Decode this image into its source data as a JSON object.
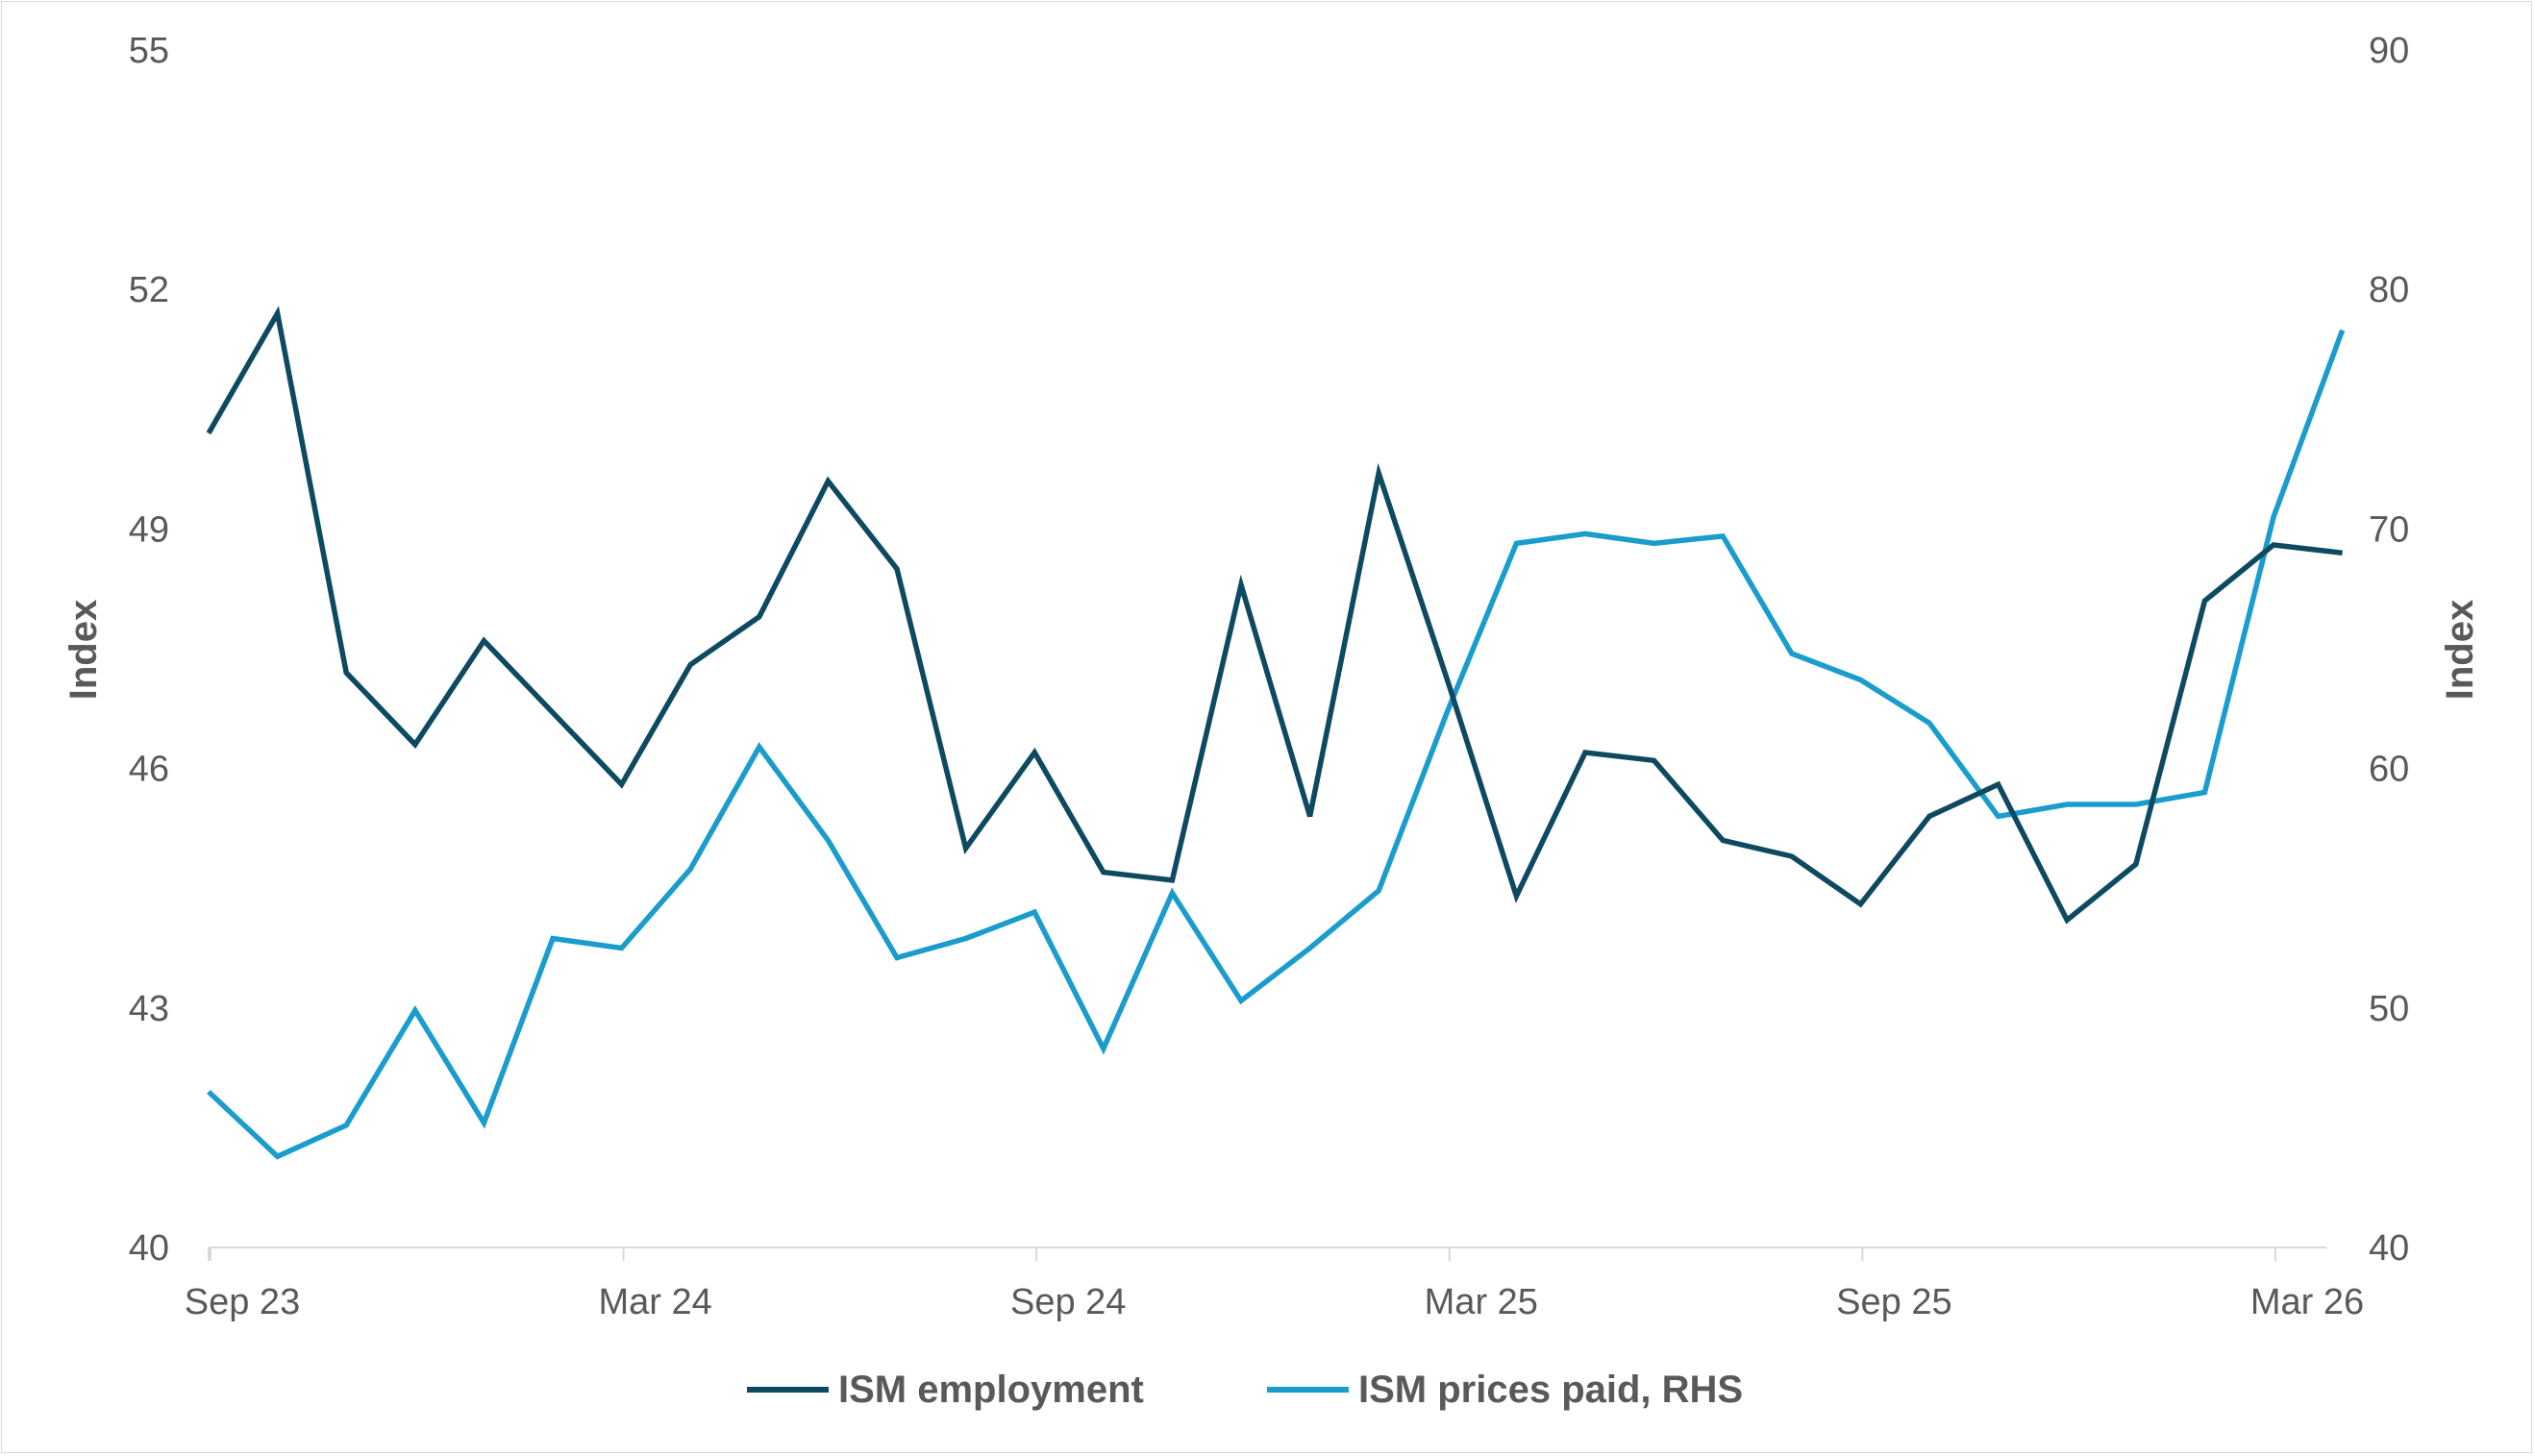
{
  "chart_data": {
    "type": "line",
    "title": "",
    "x": [
      "Sep 23",
      "Oct 23",
      "Nov 23",
      "Dec 23",
      "Jan 24",
      "Feb 24",
      "Mar 24",
      "Apr 24",
      "May 24",
      "Jun 24",
      "Jul 24",
      "Aug 24",
      "Sep 24",
      "Oct 24",
      "Nov 24",
      "Dec 24",
      "Jan 25",
      "Feb 25",
      "Mar 25",
      "Apr 25",
      "May 25",
      "Jun 25",
      "Jul 25",
      "Aug 25",
      "Sep 25",
      "Oct 25",
      "Nov 25",
      "Dec 25",
      "Jan 26",
      "Feb 26",
      "Mar 26",
      "Apr 26"
    ],
    "x_tick_labels": [
      "Sep 23",
      "Mar 24",
      "Sep 24",
      "Mar 25",
      "Sep 25",
      "Mar 26"
    ],
    "ylabel_left": "Index",
    "ylabel_right": "Index",
    "ylim_left": [
      40,
      55
    ],
    "ylim_right": [
      40,
      90
    ],
    "yticks_left": [
      "40",
      "43",
      "46",
      "49",
      "52",
      "55"
    ],
    "yticks_right": [
      "40",
      "50",
      "60",
      "70",
      "80",
      "90"
    ],
    "grid": false,
    "legend_position": "bottom",
    "series": [
      {
        "name": "ISM employment",
        "axis": "left",
        "color": "#0d4a61",
        "values": [
          50.2,
          51.7,
          47.2,
          46.3,
          47.6,
          46.7,
          45.8,
          47.3,
          47.9,
          49.6,
          48.5,
          45.0,
          46.2,
          44.7,
          44.6,
          48.3,
          45.4,
          49.7,
          47.1,
          44.4,
          46.2,
          46.1,
          45.1,
          44.9,
          44.3,
          45.4,
          45.8,
          44.1,
          44.8,
          48.1,
          48.8,
          48.7
        ]
      },
      {
        "name": "ISM prices paid, RHS",
        "axis": "right",
        "color": "#1a9ccd",
        "values": [
          46.5,
          43.8,
          45.1,
          49.9,
          45.2,
          52.9,
          52.5,
          55.8,
          60.9,
          57.0,
          52.1,
          52.9,
          54.0,
          48.3,
          54.8,
          50.3,
          52.5,
          54.9,
          62.4,
          69.4,
          69.8,
          69.4,
          69.7,
          64.8,
          63.7,
          61.9,
          58.0,
          58.5,
          58.5,
          59.0,
          70.5,
          78.3
        ]
      }
    ]
  }
}
